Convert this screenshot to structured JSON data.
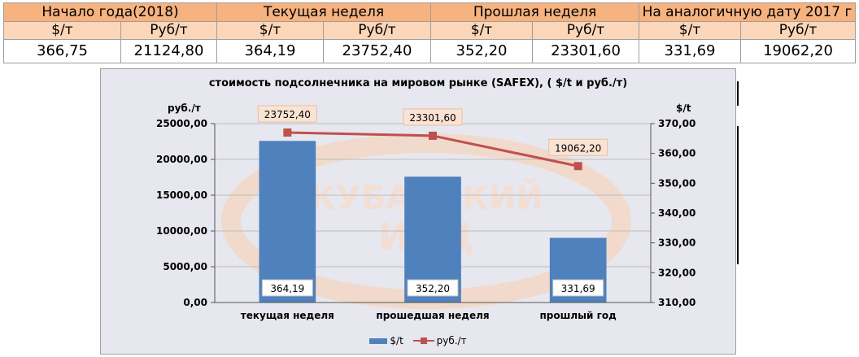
{
  "table": {
    "headers": [
      "Начало года(2018)",
      "Текущая неделя",
      "Прошлая неделя",
      "На аналогичную дату 2017 г"
    ],
    "units": [
      "$/т",
      "Руб/т",
      "$/т",
      "Руб/т",
      "$/т",
      "Руб/т",
      "$/т",
      "Руб/т"
    ],
    "values": [
      "366,75",
      "21124,80",
      "364,19",
      "23752,40",
      "352,20",
      "23301,60",
      "331,69",
      "19062,20"
    ]
  },
  "watermark": {
    "lines": [
      "КУБАНСКИЙ",
      "ИНД"
    ]
  },
  "chart_data": {
    "type": "bar",
    "title": "стоимость подсолнечника на мировом рынке (SAFEX), ( $/t и руб./т)",
    "categories": [
      "текущая неделя",
      "прошедшая неделя",
      "прошлый год"
    ],
    "y_left_label": "руб./т",
    "y_right_label": "$/t",
    "y_left_lim": [
      0,
      25000
    ],
    "y_right_lim": [
      310,
      370
    ],
    "y_left_ticks": [
      "0,00",
      "5000,00",
      "10000,00",
      "15000,00",
      "20000,00",
      "25000,00"
    ],
    "y_right_ticks": [
      "310,00",
      "320,00",
      "330,00",
      "340,00",
      "350,00",
      "360,00",
      "370,00"
    ],
    "series": [
      {
        "name": "$/t",
        "type": "bar",
        "axis": "right",
        "color": "#4f81bd",
        "values": [
          364.19,
          352.2,
          331.69
        ],
        "labels": [
          "364,19",
          "352,20",
          "331,69"
        ]
      },
      {
        "name": "руб./т",
        "type": "line",
        "axis": "left",
        "color": "#c0504d",
        "values": [
          23752.4,
          23301.6,
          19062.2
        ],
        "labels": [
          "23752,40",
          "23301,60",
          "19062,20"
        ]
      }
    ],
    "grid": true,
    "legend": "bottom"
  }
}
